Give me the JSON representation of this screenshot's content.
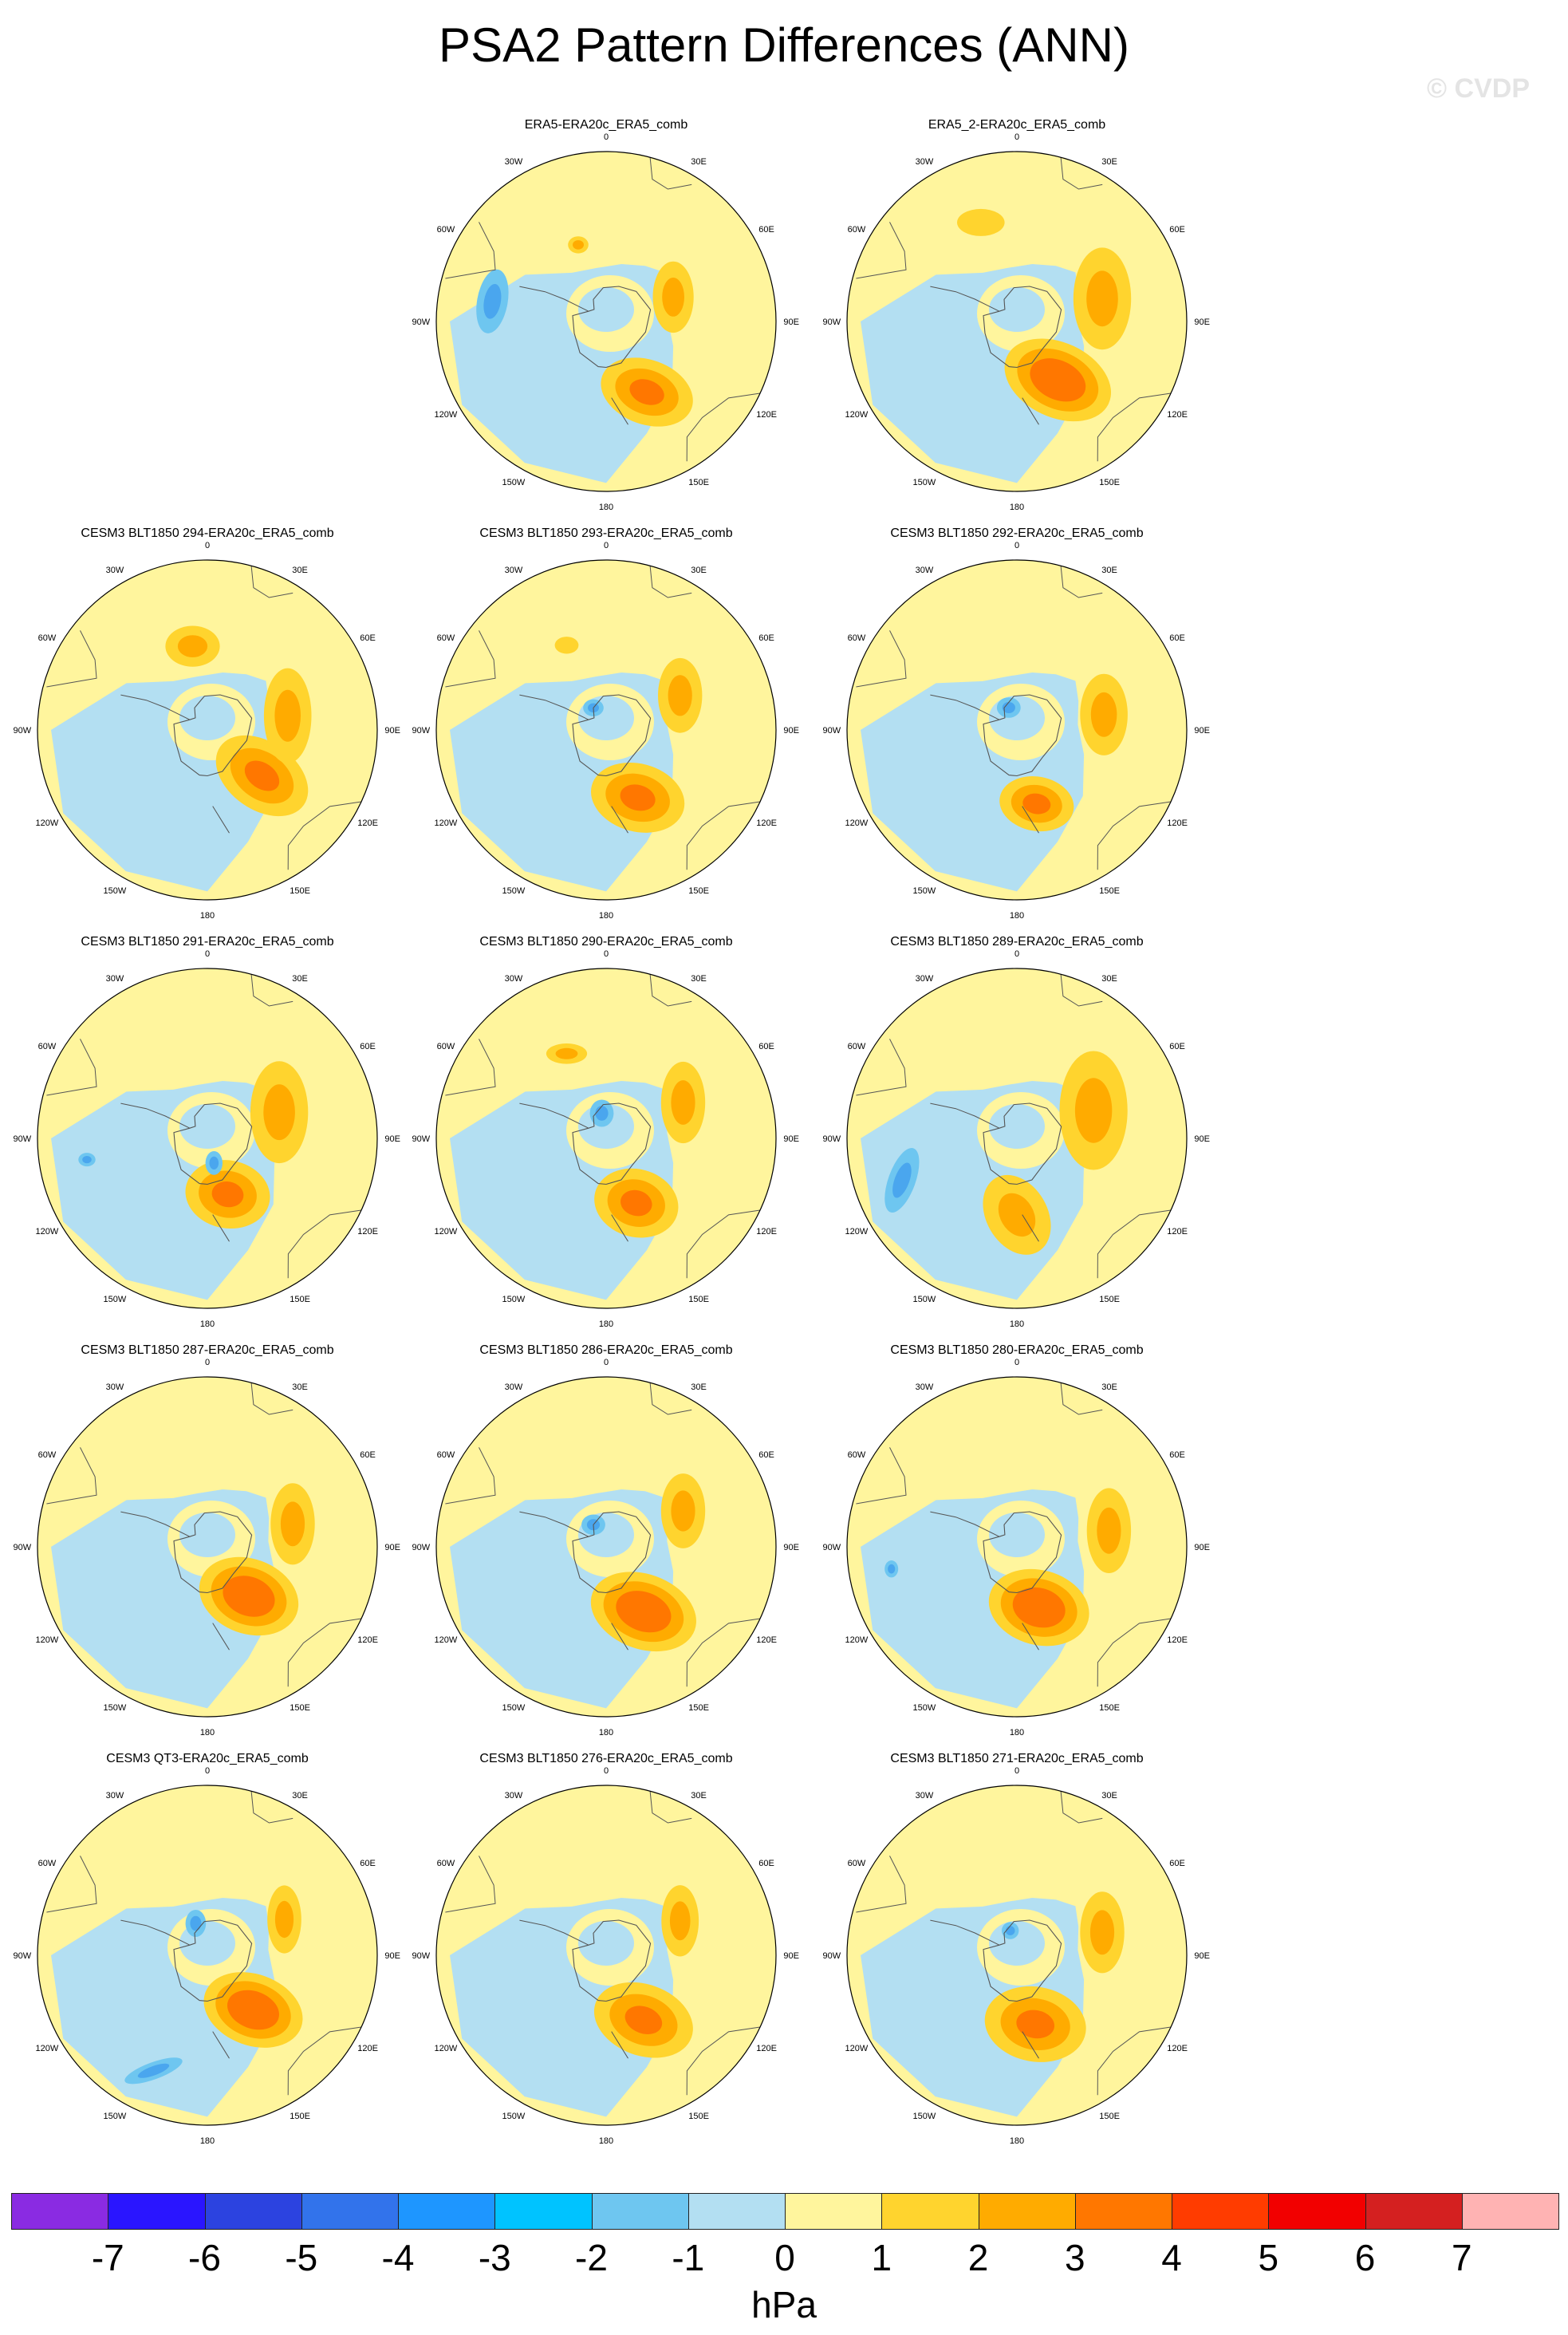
{
  "title": "PSA2 Pattern Differences (ANN)",
  "watermark": "© CVDP",
  "units": "hPa",
  "colors": {
    "neg1": "#b3dff2",
    "pos1": "#fff59d",
    "pos2": "#ffd42e",
    "pos3": "#ffab00",
    "pos4": "#ff7700",
    "neg2": "#6ec6f0",
    "neg3": "#4aa6ee",
    "coast": "#555555"
  },
  "colorbar": {
    "colors": [
      "#8a2be2",
      "#2a15ff",
      "#2c43e0",
      "#3273eb",
      "#1e96ff",
      "#00c3ff",
      "#6ec6f0",
      "#b3dff2",
      "#fff59d",
      "#ffd42e",
      "#ffab00",
      "#ff7700",
      "#ff3c00",
      "#f20000",
      "#d42020",
      "#ffb3b3"
    ],
    "labels": [
      "-7",
      "-6",
      "-5",
      "-4",
      "-3",
      "-2",
      "-1",
      "0",
      "1",
      "2",
      "3",
      "4",
      "5",
      "6",
      "7"
    ]
  },
  "lon_labels": [
    "0",
    "30E",
    "60E",
    "90E",
    "120E",
    "150E",
    "180",
    "150W",
    "120W",
    "90W",
    "60W",
    "30W"
  ],
  "panels": [
    {
      "title": "ERA5-ERA20c_ERA5_comb",
      "pos": 1,
      "features": [
        {
          "t": "p",
          "lon": 150,
          "r": 0.48,
          "a": 0.28,
          "b": 0.19,
          "m": 3,
          "rot": 20
        },
        {
          "t": "p",
          "lon": 70,
          "r": 0.42,
          "a": 0.12,
          "b": 0.21,
          "m": 2,
          "rot": 0
        },
        {
          "t": "p",
          "lon": -20,
          "r": 0.48,
          "a": 0.06,
          "b": 0.05,
          "m": 2,
          "rot": 0
        },
        {
          "t": "n",
          "lon": -80,
          "r": 0.68,
          "a": 0.09,
          "b": 0.19,
          "m": 2,
          "rot": 10
        }
      ]
    },
    {
      "title": "ERA5_2-ERA20c_ERA5_comb",
      "pos": 2,
      "features": [
        {
          "t": "p",
          "lon": 145,
          "r": 0.42,
          "a": 0.33,
          "b": 0.22,
          "m": 4,
          "rot": 25
        },
        {
          "t": "p",
          "lon": 75,
          "r": 0.52,
          "a": 0.17,
          "b": 0.3,
          "m": 2,
          "rot": 0
        },
        {
          "t": "p",
          "lon": -20,
          "r": 0.62,
          "a": 0.14,
          "b": 0.08,
          "m": 1,
          "rot": 0
        }
      ]
    },
    {
      "title": "CESM3 BLT1850 294-ERA20c_ERA5_comb",
      "pos": 3,
      "features": [
        {
          "t": "p",
          "lon": 130,
          "r": 0.42,
          "a": 0.3,
          "b": 0.2,
          "m": 3,
          "rot": 35
        },
        {
          "t": "p",
          "lon": 80,
          "r": 0.48,
          "a": 0.14,
          "b": 0.28,
          "m": 2,
          "rot": 0
        },
        {
          "t": "p",
          "lon": -10,
          "r": 0.5,
          "a": 0.16,
          "b": 0.12,
          "m": 2,
          "rot": 0
        }
      ]
    },
    {
      "title": "CESM3 BLT1850 293-ERA20c_ERA5_comb",
      "pos": 4,
      "features": [
        {
          "t": "p",
          "lon": 155,
          "r": 0.44,
          "a": 0.28,
          "b": 0.2,
          "m": 3,
          "rot": 15
        },
        {
          "t": "p",
          "lon": 65,
          "r": 0.48,
          "a": 0.13,
          "b": 0.22,
          "m": 2,
          "rot": 0
        },
        {
          "t": "n",
          "lon": -30,
          "r": 0.15,
          "a": 0.06,
          "b": 0.05,
          "m": 2,
          "rot": 0
        },
        {
          "t": "p",
          "lon": -25,
          "r": 0.55,
          "a": 0.07,
          "b": 0.05,
          "m": 1,
          "rot": 0
        }
      ]
    },
    {
      "title": "CESM3 BLT1850 292-ERA20c_ERA5_comb",
      "pos": 5,
      "features": [
        {
          "t": "p",
          "lon": 165,
          "r": 0.45,
          "a": 0.22,
          "b": 0.16,
          "m": 3,
          "rot": 10
        },
        {
          "t": "p",
          "lon": 80,
          "r": 0.52,
          "a": 0.14,
          "b": 0.24,
          "m": 2,
          "rot": 0
        },
        {
          "t": "n",
          "lon": -20,
          "r": 0.14,
          "a": 0.07,
          "b": 0.06,
          "m": 2,
          "rot": 0
        }
      ]
    },
    {
      "title": "CESM3 BLT1850 291-ERA20c_ERA5_comb",
      "pos": 6,
      "features": [
        {
          "t": "p",
          "lon": 160,
          "r": 0.35,
          "a": 0.25,
          "b": 0.2,
          "m": 3,
          "rot": 10
        },
        {
          "t": "p",
          "lon": 70,
          "r": 0.45,
          "a": 0.17,
          "b": 0.3,
          "m": 2,
          "rot": 0
        },
        {
          "t": "n",
          "lon": -100,
          "r": 0.72,
          "a": 0.05,
          "b": 0.04,
          "m": 2,
          "rot": 0
        },
        {
          "t": "n",
          "lon": 165,
          "r": 0.15,
          "a": 0.05,
          "b": 0.07,
          "m": 2,
          "rot": 0
        }
      ]
    },
    {
      "title": "CESM3 BLT1850 290-ERA20c_ERA5_comb",
      "pos": 7,
      "features": [
        {
          "t": "p",
          "lon": 155,
          "r": 0.42,
          "a": 0.25,
          "b": 0.2,
          "m": 3,
          "rot": 15
        },
        {
          "t": "p",
          "lon": 65,
          "r": 0.5,
          "a": 0.13,
          "b": 0.24,
          "m": 2,
          "rot": 0
        },
        {
          "t": "p",
          "lon": -25,
          "r": 0.55,
          "a": 0.12,
          "b": 0.06,
          "m": 2,
          "rot": 0
        },
        {
          "t": "n",
          "lon": -10,
          "r": 0.15,
          "a": 0.07,
          "b": 0.08,
          "m": 2,
          "rot": 0
        }
      ]
    },
    {
      "title": "CESM3 BLT1850 289-ERA20c_ERA5_comb",
      "pos": 8,
      "features": [
        {
          "t": "p",
          "lon": 180,
          "r": 0.45,
          "a": 0.18,
          "b": 0.25,
          "m": 2,
          "rot": -30
        },
        {
          "t": "p",
          "lon": 70,
          "r": 0.48,
          "a": 0.2,
          "b": 0.35,
          "m": 2,
          "rot": 0
        },
        {
          "t": "n",
          "lon": -110,
          "r": 0.72,
          "a": 0.08,
          "b": 0.2,
          "m": 2,
          "rot": 20
        }
      ]
    },
    {
      "title": "CESM3 BLT1850 287-ERA20c_ERA5_comb",
      "pos": 9,
      "features": [
        {
          "t": "p",
          "lon": 140,
          "r": 0.38,
          "a": 0.3,
          "b": 0.22,
          "m": 4,
          "rot": 20
        },
        {
          "t": "p",
          "lon": 75,
          "r": 0.52,
          "a": 0.13,
          "b": 0.24,
          "m": 2,
          "rot": 0
        }
      ]
    },
    {
      "title": "CESM3 BLT1850 286-ERA20c_ERA5_comb",
      "pos": 10,
      "features": [
        {
          "t": "p",
          "lon": 150,
          "r": 0.44,
          "a": 0.32,
          "b": 0.22,
          "m": 4,
          "rot": 20
        },
        {
          "t": "p",
          "lon": 65,
          "r": 0.5,
          "a": 0.13,
          "b": 0.22,
          "m": 2,
          "rot": 0
        },
        {
          "t": "n",
          "lon": -30,
          "r": 0.15,
          "a": 0.07,
          "b": 0.06,
          "m": 2,
          "rot": 0
        }
      ]
    },
    {
      "title": "CESM3 BLT1850 280-ERA20c_ERA5_comb",
      "pos": 11,
      "features": [
        {
          "t": "p",
          "lon": 160,
          "r": 0.38,
          "a": 0.3,
          "b": 0.22,
          "m": 4,
          "rot": 15
        },
        {
          "t": "p",
          "lon": 80,
          "r": 0.55,
          "a": 0.13,
          "b": 0.25,
          "m": 2,
          "rot": 0
        },
        {
          "t": "n",
          "lon": -100,
          "r": 0.75,
          "a": 0.04,
          "b": 0.05,
          "m": 2,
          "rot": 0
        }
      ]
    },
    {
      "title": "CESM3 QT3-ERA20c_ERA5_comb",
      "pos": 12,
      "features": [
        {
          "t": "p",
          "lon": 140,
          "r": 0.42,
          "a": 0.3,
          "b": 0.21,
          "m": 4,
          "rot": 20
        },
        {
          "t": "p",
          "lon": 65,
          "r": 0.5,
          "a": 0.1,
          "b": 0.2,
          "m": 2,
          "rot": 0
        },
        {
          "t": "n",
          "lon": -20,
          "r": 0.2,
          "a": 0.06,
          "b": 0.08,
          "m": 2,
          "rot": 0
        },
        {
          "t": "n",
          "lon": -155,
          "r": 0.75,
          "a": 0.18,
          "b": 0.05,
          "m": 2,
          "rot": -20
        }
      ]
    },
    {
      "title": "CESM3 BLT1850 276-ERA20c_ERA5_comb",
      "pos": 13,
      "features": [
        {
          "t": "p",
          "lon": 150,
          "r": 0.44,
          "a": 0.3,
          "b": 0.21,
          "m": 3,
          "rot": 20
        },
        {
          "t": "p",
          "lon": 65,
          "r": 0.48,
          "a": 0.11,
          "b": 0.21,
          "m": 2,
          "rot": 0
        }
      ]
    },
    {
      "title": "CESM3 BLT1850 271-ERA20c_ERA5_comb",
      "pos": 14,
      "features": [
        {
          "t": "p",
          "lon": 165,
          "r": 0.42,
          "a": 0.3,
          "b": 0.22,
          "m": 3,
          "rot": 10
        },
        {
          "t": "p",
          "lon": 75,
          "r": 0.52,
          "a": 0.13,
          "b": 0.24,
          "m": 2,
          "rot": 0
        },
        {
          "t": "n",
          "lon": -15,
          "r": 0.15,
          "a": 0.05,
          "b": 0.05,
          "m": 2,
          "rot": 0
        }
      ]
    }
  ]
}
